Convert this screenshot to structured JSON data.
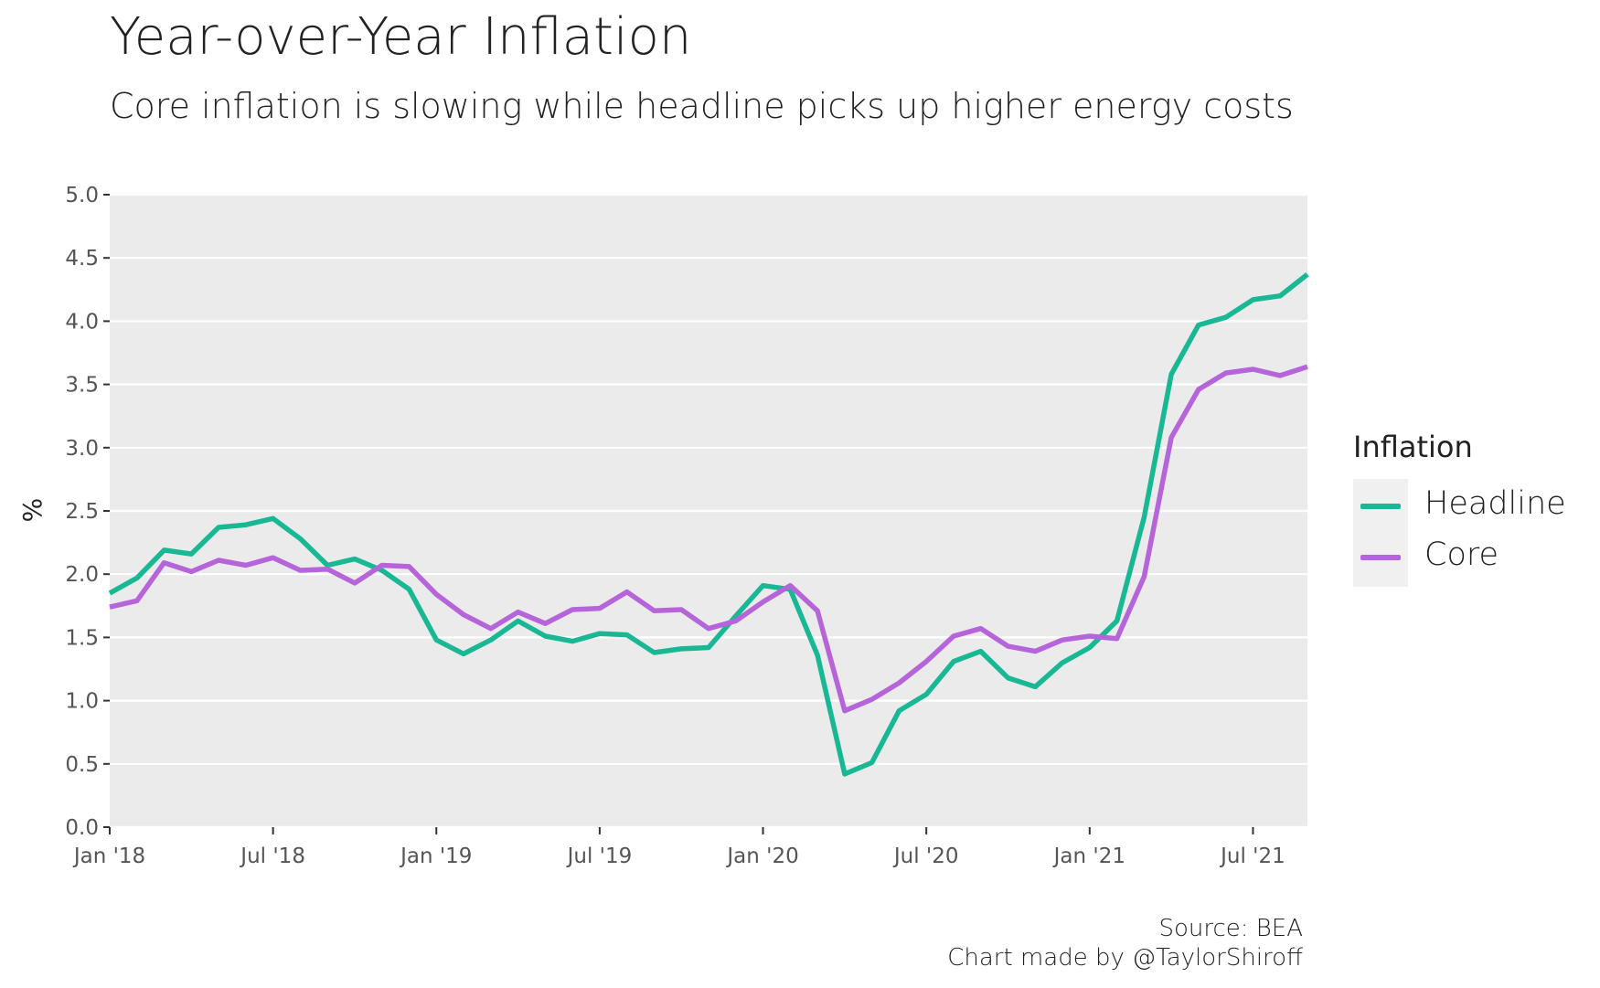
{
  "chart_data": {
    "type": "line",
    "title": "Year-over-Year Inflation",
    "subtitle": "Core inflation is slowing while headline picks up higher energy costs",
    "ylabel": "%",
    "xlabel": "",
    "ylim": [
      0,
      5
    ],
    "yticks": [
      "0.0",
      "0.5",
      "1.0",
      "1.5",
      "2.0",
      "2.5",
      "3.0",
      "3.5",
      "4.0",
      "4.5",
      "5.0"
    ],
    "xticks": [
      "Jan '18",
      "Jul '18",
      "Jan '19",
      "Jul '19",
      "Jan '20",
      "Jul '20",
      "Jan '21",
      "Jul '21"
    ],
    "x": [
      "2018-01",
      "2018-02",
      "2018-03",
      "2018-04",
      "2018-05",
      "2018-06",
      "2018-07",
      "2018-08",
      "2018-09",
      "2018-10",
      "2018-11",
      "2018-12",
      "2019-01",
      "2019-02",
      "2019-03",
      "2019-04",
      "2019-05",
      "2019-06",
      "2019-07",
      "2019-08",
      "2019-09",
      "2019-10",
      "2019-11",
      "2019-12",
      "2020-01",
      "2020-02",
      "2020-03",
      "2020-04",
      "2020-05",
      "2020-06",
      "2020-07",
      "2020-08",
      "2020-09",
      "2020-10",
      "2020-11",
      "2020-12",
      "2021-01",
      "2021-02",
      "2021-03",
      "2021-04",
      "2021-05",
      "2021-06",
      "2021-07",
      "2021-08",
      "2021-09"
    ],
    "grid": true,
    "legend_position": "right",
    "legend_title": "Inflation",
    "series": [
      {
        "name": "Headline",
        "color": "#19b894",
        "values": [
          1.85,
          1.97,
          2.19,
          2.16,
          2.37,
          2.39,
          2.44,
          2.28,
          2.07,
          2.12,
          2.03,
          1.88,
          1.48,
          1.37,
          1.48,
          1.63,
          1.51,
          1.47,
          1.53,
          1.52,
          1.38,
          1.41,
          1.42,
          1.67,
          1.91,
          1.88,
          1.36,
          0.42,
          0.51,
          0.92,
          1.05,
          1.31,
          1.39,
          1.18,
          1.11,
          1.3,
          1.42,
          1.63,
          2.45,
          3.58,
          3.97,
          4.03,
          4.17,
          4.2,
          4.37
        ]
      },
      {
        "name": "Core",
        "color": "#b565d9",
        "values": [
          1.74,
          1.79,
          2.09,
          2.02,
          2.11,
          2.07,
          2.13,
          2.03,
          2.04,
          1.93,
          2.07,
          2.06,
          1.84,
          1.68,
          1.57,
          1.7,
          1.61,
          1.72,
          1.73,
          1.86,
          1.71,
          1.72,
          1.57,
          1.63,
          1.78,
          1.91,
          1.71,
          0.92,
          1.01,
          1.14,
          1.31,
          1.51,
          1.57,
          1.43,
          1.39,
          1.48,
          1.51,
          1.49,
          1.98,
          3.08,
          3.46,
          3.59,
          3.62,
          3.57,
          3.64
        ]
      }
    ]
  },
  "caption": {
    "source": "Source: BEA",
    "credit": "Chart made by @TaylorShiroff"
  }
}
